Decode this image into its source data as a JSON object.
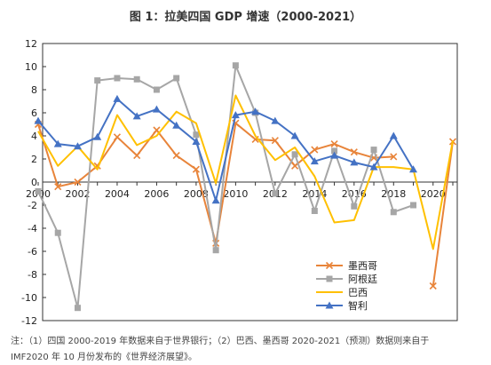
{
  "chart_data": {
    "type": "line",
    "title": "图 1：拉美四国 GDP 增速（2000-2021）",
    "xlabel": "",
    "ylabel": "",
    "x": [
      2000,
      2001,
      2002,
      2003,
      2004,
      2005,
      2006,
      2007,
      2008,
      2009,
      2010,
      2011,
      2012,
      2013,
      2014,
      2015,
      2016,
      2017,
      2018,
      2019,
      2020,
      2021
    ],
    "x_ticks": [
      2000,
      2002,
      2004,
      2006,
      2008,
      2010,
      2012,
      2014,
      2016,
      2018,
      2020
    ],
    "y_ticks": [
      -12,
      -10,
      -8,
      -6,
      -4,
      -2,
      0,
      2,
      4,
      6,
      8,
      10,
      12
    ],
    "xlim": [
      2000,
      2021
    ],
    "ylim": [
      -12,
      12
    ],
    "grid": false,
    "legend_position": "lower-right",
    "series": [
      {
        "name": "墨西哥",
        "color": "#e8843a",
        "marker": "x",
        "values": [
          5.0,
          -0.4,
          0.0,
          1.4,
          3.9,
          2.3,
          4.5,
          2.3,
          1.1,
          -5.3,
          5.1,
          3.7,
          3.6,
          1.4,
          2.8,
          3.3,
          2.6,
          2.1,
          2.2,
          null,
          -9.0,
          3.5
        ]
      },
      {
        "name": "阿根廷",
        "color": "#a6a6a6",
        "marker": "square",
        "values": [
          -0.8,
          -4.4,
          -10.9,
          8.8,
          9.0,
          8.9,
          8.0,
          9.0,
          4.1,
          -5.9,
          10.1,
          6.0,
          -1.0,
          2.4,
          -2.5,
          2.7,
          -2.1,
          2.8,
          -2.6,
          -2.0,
          null,
          null
        ]
      },
      {
        "name": "巴西",
        "color": "#ffc000",
        "marker": "none",
        "values": [
          4.4,
          1.4,
          3.1,
          1.1,
          5.8,
          3.2,
          4.0,
          6.1,
          5.1,
          -0.1,
          7.5,
          4.0,
          1.9,
          3.0,
          0.5,
          -3.5,
          -3.3,
          1.3,
          1.3,
          1.1,
          -5.8,
          3.6
        ]
      },
      {
        "name": "智利",
        "color": "#4472c4",
        "marker": "triangle",
        "values": [
          5.3,
          3.3,
          3.1,
          3.9,
          7.2,
          5.7,
          6.3,
          4.9,
          3.5,
          -1.6,
          5.8,
          6.1,
          5.3,
          4.0,
          1.8,
          2.3,
          1.7,
          1.3,
          4.0,
          1.1,
          null,
          null
        ]
      }
    ]
  },
  "notes": {
    "line1": "注：（1）四国 2000-2019 年数据来自于世界银行；（2）巴西、墨西哥 2020-2021（预测）数据则来自于",
    "line2": "IMF2020 年 10 月份发布的《世界经济展望》。"
  }
}
